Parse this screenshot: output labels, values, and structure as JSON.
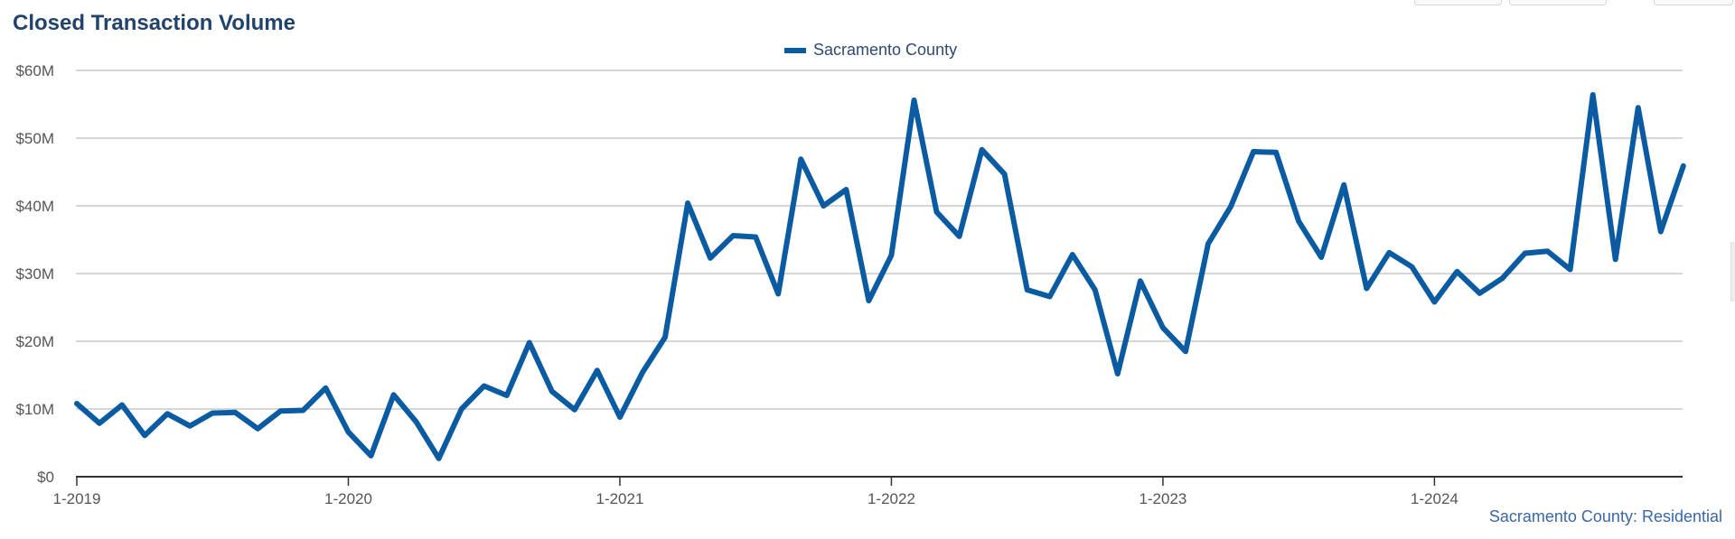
{
  "chart_data": {
    "type": "line",
    "title": "Closed Transaction Volume",
    "xlabel": "",
    "ylabel": "",
    "legend_position": "top-center",
    "grid": true,
    "ylim": [
      0,
      60
    ],
    "y_ticks": [
      {
        "value": 0,
        "label": "$0"
      },
      {
        "value": 10,
        "label": "$10M"
      },
      {
        "value": 20,
        "label": "$20M"
      },
      {
        "value": 30,
        "label": "$30M"
      },
      {
        "value": 40,
        "label": "$40M"
      },
      {
        "value": 50,
        "label": "$50M"
      },
      {
        "value": 60,
        "label": "$60M"
      }
    ],
    "x_ticks": [
      {
        "index": 0,
        "label": "1-2019"
      },
      {
        "index": 12,
        "label": "1-2020"
      },
      {
        "index": 24,
        "label": "1-2021"
      },
      {
        "index": 36,
        "label": "1-2022"
      },
      {
        "index": 48,
        "label": "1-2023"
      },
      {
        "index": 60,
        "label": "1-2024"
      }
    ],
    "x_count": 72,
    "colors": {
      "series": "#0b5ba3",
      "grid": "#c8c8c8",
      "axis": "#333333"
    },
    "series": [
      {
        "name": "Sacramento County",
        "unit": "$M",
        "values": [
          10.8,
          7.9,
          10.6,
          6.1,
          9.3,
          7.5,
          9.4,
          9.5,
          7.1,
          9.7,
          9.8,
          13.1,
          6.6,
          3.1,
          12.1,
          8.1,
          2.7,
          10.0,
          13.4,
          12.0,
          19.8,
          12.6,
          9.9,
          15.7,
          8.8,
          15.4,
          20.6,
          40.4,
          32.3,
          35.6,
          35.4,
          27.0,
          46.9,
          40.0,
          42.4,
          26.0,
          32.7,
          55.6,
          39.1,
          35.5,
          48.3,
          44.7,
          27.6,
          26.6,
          32.8,
          27.6,
          15.2,
          28.9,
          22.0,
          18.5,
          34.4,
          39.9,
          48.0,
          47.9,
          37.7,
          32.4,
          43.1,
          27.8,
          33.1,
          31.0,
          25.8,
          30.3,
          27.1,
          29.3,
          33.0,
          33.3,
          30.6,
          56.4,
          32.1,
          54.5,
          36.2,
          45.9
        ]
      }
    ]
  },
  "legend": {
    "label": "Sacramento County"
  },
  "footer": {
    "source": "Sacramento County: Residential"
  }
}
